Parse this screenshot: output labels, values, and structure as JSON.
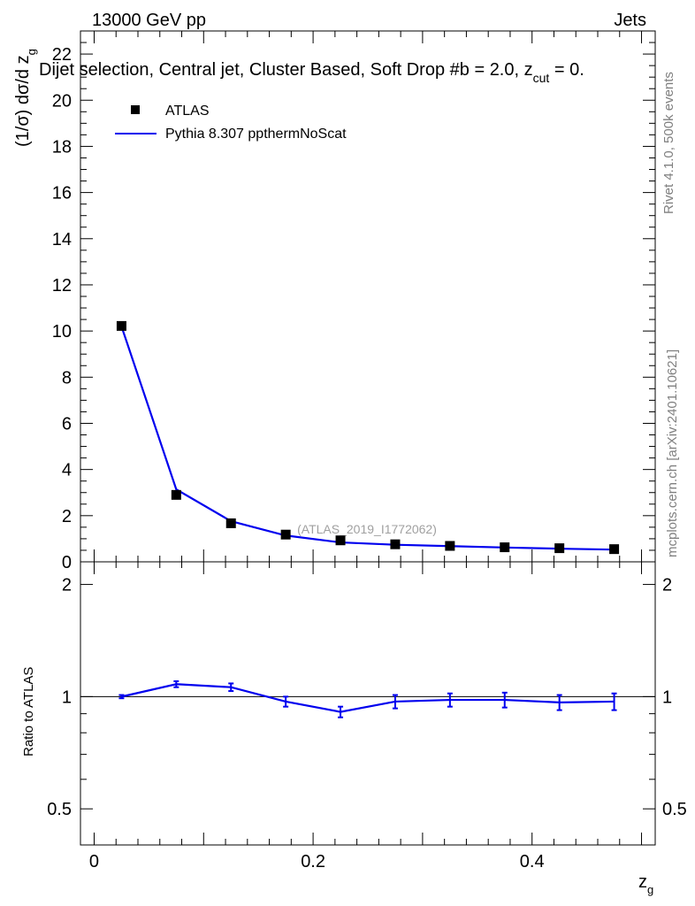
{
  "header": {
    "energy_label": "13000 GeV pp",
    "category_label": "Jets"
  },
  "side_labels": {
    "rivet": "Rivet 4.1.0,  500k events",
    "mcplots": "mcplots.cern.ch [arXiv:2401.10621]"
  },
  "colors": {
    "data": "#000000",
    "mc": "#0000ee"
  },
  "chart_data": [
    {
      "type": "scatter",
      "name": "main-panel",
      "title": "Dijet selection, Central jet, Cluster Based, Soft Drop #b = 2.0, z_cut = 0.",
      "title_parts": {
        "main": "Dijet selection, Central jet, Cluster Based, Soft Drop #b = 2.0, z",
        "sub": "cut",
        "tail": " = 0."
      },
      "ylabel": "(1/σ) dσ/d z",
      "ylabel_sub": "g",
      "xlim": [
        -0.0125,
        0.5125
      ],
      "ylim": [
        0,
        23
      ],
      "y_ticks": [
        0,
        2,
        4,
        6,
        8,
        10,
        12,
        14,
        16,
        18,
        20,
        22
      ],
      "y_tick_labels": [
        "0",
        "2",
        "4",
        "6",
        "8",
        "10",
        "12",
        "14",
        "16",
        "18",
        "20",
        "22"
      ],
      "watermark": "(ATLAS_2019_I1772062)",
      "x": [
        0.025,
        0.075,
        0.125,
        0.175,
        0.225,
        0.275,
        0.325,
        0.375,
        0.425,
        0.475
      ],
      "series": [
        {
          "name": "ATLAS",
          "style": "markers",
          "values": [
            10.22,
            2.9,
            1.67,
            1.18,
            0.93,
            0.76,
            0.69,
            0.63,
            0.59,
            0.55
          ]
        },
        {
          "name": "Pythia 8.307 ppthermNoScat",
          "style": "line",
          "values": [
            10.2,
            3.14,
            1.76,
            1.14,
            0.84,
            0.74,
            0.68,
            0.62,
            0.57,
            0.53
          ]
        }
      ],
      "legend": [
        "ATLAS",
        "Pythia 8.307 ppthermNoScat"
      ],
      "legend_position": "top-left"
    },
    {
      "type": "line",
      "name": "ratio-panel",
      "ylabel": "Ratio to ATLAS",
      "xlabel": "z",
      "xlabel_sub": "g",
      "xlim": [
        -0.0125,
        0.5125
      ],
      "ylim": [
        0.4,
        2.3
      ],
      "log_y": true,
      "x_ticks": [
        0,
        0.2,
        0.4
      ],
      "x_tick_labels": [
        "0",
        "0.2",
        "0.4"
      ],
      "y_ticks": [
        0.5,
        1,
        2
      ],
      "y_tick_labels": [
        "0.5",
        "1",
        "2"
      ],
      "reference_line": 1,
      "x": [
        0.025,
        0.075,
        0.125,
        0.175,
        0.225,
        0.275,
        0.325,
        0.375,
        0.425,
        0.475
      ],
      "series": [
        {
          "name": "Pythia 8.307 ppthermNoScat / ATLAS",
          "values": [
            1.0,
            1.08,
            1.06,
            0.97,
            0.91,
            0.97,
            0.98,
            0.98,
            0.965,
            0.97
          ],
          "errors": [
            0.01,
            0.02,
            0.025,
            0.03,
            0.03,
            0.04,
            0.04,
            0.045,
            0.045,
            0.05
          ]
        }
      ]
    }
  ]
}
